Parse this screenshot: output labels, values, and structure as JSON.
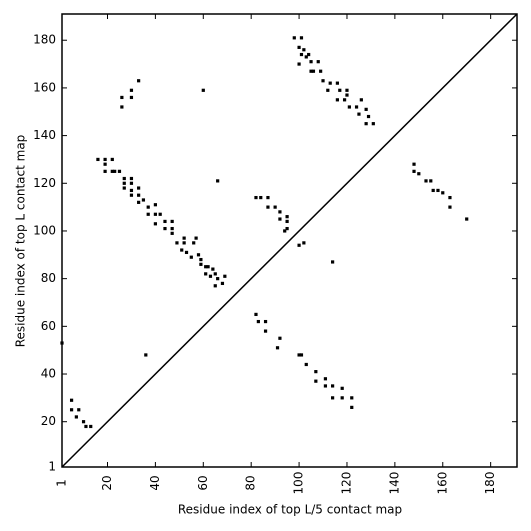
{
  "chart_data": {
    "type": "scatter",
    "xlabel": "Residue index of top L/5 contact map",
    "ylabel": "Residue index of top L contact map",
    "xlim": [
      1,
      191
    ],
    "ylim": [
      1,
      191
    ],
    "xticks": [
      1,
      20,
      40,
      60,
      80,
      100,
      120,
      140,
      160,
      180
    ],
    "yticks": [
      1,
      20,
      40,
      60,
      80,
      100,
      120,
      140,
      160,
      180
    ],
    "grid": false,
    "diagonal": true,
    "series": [
      {
        "color": "#000000",
        "x": [
          1,
          26,
          26,
          30,
          30,
          33,
          60,
          19,
          19,
          22,
          22,
          19,
          23,
          27,
          27,
          30,
          30,
          27,
          30,
          33,
          30,
          33,
          35,
          33,
          37,
          37,
          40,
          40,
          42,
          40,
          44,
          44,
          47,
          47,
          47,
          49,
          52,
          52,
          51,
          53,
          55,
          56,
          57,
          58,
          59,
          59,
          61,
          62,
          61,
          63,
          64,
          65,
          66,
          65,
          68,
          69,
          66,
          16,
          25,
          82,
          84,
          87,
          87,
          90,
          92,
          92,
          95,
          95,
          95,
          94,
          100,
          102,
          114,
          98,
          101,
          100,
          102,
          101,
          103,
          100,
          104,
          105,
          105,
          108,
          109,
          110,
          113,
          116,
          112,
          117,
          120,
          119,
          116,
          121,
          124,
          125,
          128,
          129,
          128,
          131,
          126,
          106,
          120,
          148,
          150,
          153,
          155,
          156,
          158,
          160,
          163,
          163,
          170,
          148,
          36,
          5,
          5,
          7,
          8,
          10,
          11,
          13,
          82,
          83,
          86,
          86,
          91,
          92,
          100,
          101,
          103,
          107,
          107,
          111,
          111,
          114,
          114,
          118,
          118,
          122,
          122
        ],
        "y": [
          53,
          156,
          152,
          159,
          156,
          163,
          159,
          130,
          128,
          130,
          125,
          125,
          125,
          122,
          120,
          122,
          120,
          118,
          117,
          118,
          115,
          115,
          113,
          112,
          110,
          107,
          111,
          107,
          107,
          103,
          104,
          101,
          104,
          101,
          99,
          95,
          97,
          95,
          92,
          91,
          89,
          95,
          97,
          90,
          88,
          86,
          85,
          85,
          82,
          81,
          84,
          82,
          80,
          77,
          78,
          81,
          121,
          130,
          125,
          114,
          114,
          114,
          110,
          110,
          108,
          105,
          106,
          104,
          101,
          100,
          94,
          95,
          87,
          181,
          181,
          177,
          176,
          174,
          173,
          170,
          174,
          171,
          167,
          171,
          167,
          163,
          162,
          162,
          159,
          159,
          159,
          155,
          155,
          152,
          152,
          149,
          151,
          148,
          145,
          145,
          155,
          167,
          157,
          128,
          124,
          121,
          121,
          117,
          117,
          116,
          114,
          110,
          105,
          125,
          48,
          29,
          25,
          22,
          25,
          20,
          18,
          18,
          65,
          62,
          58,
          62,
          51,
          55,
          48,
          48,
          44,
          41,
          37,
          38,
          35,
          35,
          30,
          34,
          30,
          30,
          26
        ]
      }
    ]
  }
}
